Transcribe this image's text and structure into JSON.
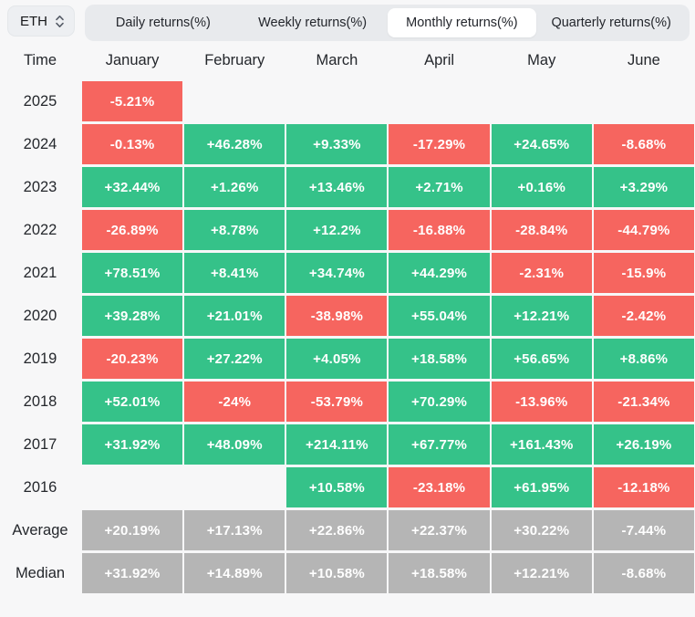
{
  "header": {
    "symbol": "ETH",
    "tabs": [
      {
        "label": "Daily returns(%)",
        "active": false
      },
      {
        "label": "Weekly returns(%)",
        "active": false
      },
      {
        "label": "Monthly returns(%)",
        "active": true
      },
      {
        "label": "Quarterly returns(%)",
        "active": false
      }
    ]
  },
  "colors": {
    "positive": "#35c289",
    "negative": "#f6655f",
    "summary": "#b5b5b5",
    "cell_text": "#ffffff",
    "page_background": "#f7f7f8"
  },
  "table": {
    "columns": [
      "Time",
      "January",
      "February",
      "March",
      "April",
      "May",
      "June"
    ],
    "rows": [
      {
        "label": "2025",
        "cells": [
          {
            "text": "-5.21%",
            "kind": "negative"
          },
          {
            "kind": "empty"
          },
          {
            "kind": "empty"
          },
          {
            "kind": "empty"
          },
          {
            "kind": "empty"
          },
          {
            "kind": "empty"
          }
        ]
      },
      {
        "label": "2024",
        "cells": [
          {
            "text": "-0.13%",
            "kind": "negative"
          },
          {
            "text": "+46.28%",
            "kind": "positive"
          },
          {
            "text": "+9.33%",
            "kind": "positive"
          },
          {
            "text": "-17.29%",
            "kind": "negative"
          },
          {
            "text": "+24.65%",
            "kind": "positive"
          },
          {
            "text": "-8.68%",
            "kind": "negative"
          }
        ]
      },
      {
        "label": "2023",
        "cells": [
          {
            "text": "+32.44%",
            "kind": "positive"
          },
          {
            "text": "+1.26%",
            "kind": "positive"
          },
          {
            "text": "+13.46%",
            "kind": "positive"
          },
          {
            "text": "+2.71%",
            "kind": "positive"
          },
          {
            "text": "+0.16%",
            "kind": "positive"
          },
          {
            "text": "+3.29%",
            "kind": "positive"
          }
        ]
      },
      {
        "label": "2022",
        "cells": [
          {
            "text": "-26.89%",
            "kind": "negative"
          },
          {
            "text": "+8.78%",
            "kind": "positive"
          },
          {
            "text": "+12.2%",
            "kind": "positive"
          },
          {
            "text": "-16.88%",
            "kind": "negative"
          },
          {
            "text": "-28.84%",
            "kind": "negative"
          },
          {
            "text": "-44.79%",
            "kind": "negative"
          }
        ]
      },
      {
        "label": "2021",
        "cells": [
          {
            "text": "+78.51%",
            "kind": "positive"
          },
          {
            "text": "+8.41%",
            "kind": "positive"
          },
          {
            "text": "+34.74%",
            "kind": "positive"
          },
          {
            "text": "+44.29%",
            "kind": "positive"
          },
          {
            "text": "-2.31%",
            "kind": "negative"
          },
          {
            "text": "-15.9%",
            "kind": "negative"
          }
        ]
      },
      {
        "label": "2020",
        "cells": [
          {
            "text": "+39.28%",
            "kind": "positive"
          },
          {
            "text": "+21.01%",
            "kind": "positive"
          },
          {
            "text": "-38.98%",
            "kind": "negative"
          },
          {
            "text": "+55.04%",
            "kind": "positive"
          },
          {
            "text": "+12.21%",
            "kind": "positive"
          },
          {
            "text": "-2.42%",
            "kind": "negative"
          }
        ]
      },
      {
        "label": "2019",
        "cells": [
          {
            "text": "-20.23%",
            "kind": "negative"
          },
          {
            "text": "+27.22%",
            "kind": "positive"
          },
          {
            "text": "+4.05%",
            "kind": "positive"
          },
          {
            "text": "+18.58%",
            "kind": "positive"
          },
          {
            "text": "+56.65%",
            "kind": "positive"
          },
          {
            "text": "+8.86%",
            "kind": "positive"
          }
        ]
      },
      {
        "label": "2018",
        "cells": [
          {
            "text": "+52.01%",
            "kind": "positive"
          },
          {
            "text": "-24%",
            "kind": "negative"
          },
          {
            "text": "-53.79%",
            "kind": "negative"
          },
          {
            "text": "+70.29%",
            "kind": "positive"
          },
          {
            "text": "-13.96%",
            "kind": "negative"
          },
          {
            "text": "-21.34%",
            "kind": "negative"
          }
        ]
      },
      {
        "label": "2017",
        "cells": [
          {
            "text": "+31.92%",
            "kind": "positive"
          },
          {
            "text": "+48.09%",
            "kind": "positive"
          },
          {
            "text": "+214.11%",
            "kind": "positive"
          },
          {
            "text": "+67.77%",
            "kind": "positive"
          },
          {
            "text": "+161.43%",
            "kind": "positive"
          },
          {
            "text": "+26.19%",
            "kind": "positive"
          }
        ]
      },
      {
        "label": "2016",
        "cells": [
          {
            "kind": "empty"
          },
          {
            "kind": "empty"
          },
          {
            "text": "+10.58%",
            "kind": "positive"
          },
          {
            "text": "-23.18%",
            "kind": "negative"
          },
          {
            "text": "+61.95%",
            "kind": "positive"
          },
          {
            "text": "-12.18%",
            "kind": "negative"
          }
        ]
      },
      {
        "label": "Average",
        "cells": [
          {
            "text": "+20.19%",
            "kind": "summary"
          },
          {
            "text": "+17.13%",
            "kind": "summary"
          },
          {
            "text": "+22.86%",
            "kind": "summary"
          },
          {
            "text": "+22.37%",
            "kind": "summary"
          },
          {
            "text": "+30.22%",
            "kind": "summary"
          },
          {
            "text": "-7.44%",
            "kind": "summary"
          }
        ]
      },
      {
        "label": "Median",
        "cells": [
          {
            "text": "+31.92%",
            "kind": "summary"
          },
          {
            "text": "+14.89%",
            "kind": "summary"
          },
          {
            "text": "+10.58%",
            "kind": "summary"
          },
          {
            "text": "+18.58%",
            "kind": "summary"
          },
          {
            "text": "+12.21%",
            "kind": "summary"
          },
          {
            "text": "-8.68%",
            "kind": "summary"
          }
        ]
      }
    ]
  },
  "chart_data": {
    "type": "heatmap",
    "title": "ETH Monthly returns(%)",
    "x_categories": [
      "January",
      "February",
      "March",
      "April",
      "May",
      "June"
    ],
    "y_categories": [
      "2025",
      "2024",
      "2023",
      "2022",
      "2021",
      "2020",
      "2019",
      "2018",
      "2017",
      "2016",
      "Average",
      "Median"
    ],
    "values": [
      [
        -5.21,
        null,
        null,
        null,
        null,
        null
      ],
      [
        -0.13,
        46.28,
        9.33,
        -17.29,
        24.65,
        -8.68
      ],
      [
        32.44,
        1.26,
        13.46,
        2.71,
        0.16,
        3.29
      ],
      [
        -26.89,
        8.78,
        12.2,
        -16.88,
        -28.84,
        -44.79
      ],
      [
        78.51,
        8.41,
        34.74,
        44.29,
        -2.31,
        -15.9
      ],
      [
        39.28,
        21.01,
        -38.98,
        55.04,
        12.21,
        -2.42
      ],
      [
        -20.23,
        27.22,
        4.05,
        18.58,
        56.65,
        8.86
      ],
      [
        52.01,
        -24,
        -53.79,
        70.29,
        -13.96,
        -21.34
      ],
      [
        31.92,
        48.09,
        214.11,
        67.77,
        161.43,
        26.19
      ],
      [
        null,
        null,
        10.58,
        -23.18,
        61.95,
        -12.18
      ],
      [
        20.19,
        17.13,
        22.86,
        22.37,
        30.22,
        -7.44
      ],
      [
        31.92,
        14.89,
        10.58,
        18.58,
        12.21,
        -8.68
      ]
    ],
    "legend": "green = positive return, red = negative return, gray = summary rows"
  }
}
